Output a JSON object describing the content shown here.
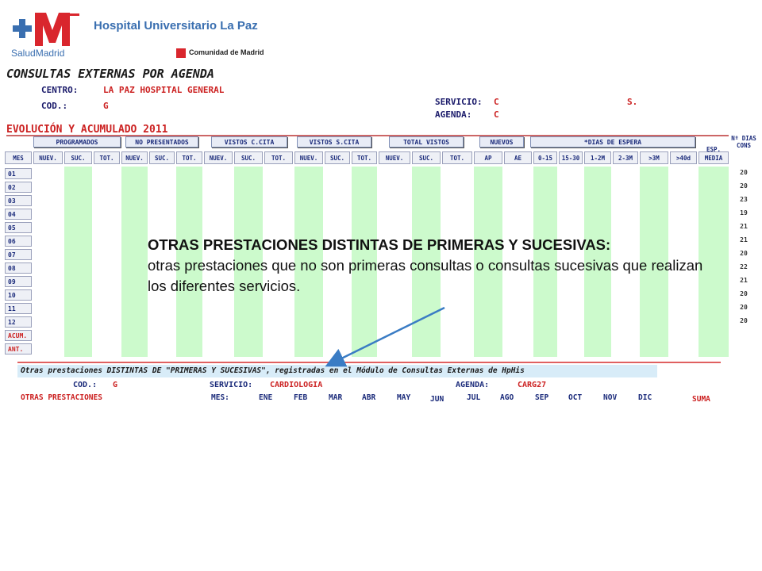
{
  "header": {
    "hospital_title": "Hospital Universitario La Paz",
    "logo_text": "SaludMadrid",
    "region_label": "Comunidad de Madrid"
  },
  "report": {
    "title": "CONSULTAS EXTERNAS POR AGENDA",
    "centro_label": "CENTRO:",
    "centro_value": "LA PAZ HOSPITAL GENERAL",
    "cod_label": "COD.:",
    "cod_value": "G",
    "servicio_label": "SERVICIO:",
    "servicio_value": "C",
    "servicio_tail": "S.",
    "agenda_label": "AGENDA:",
    "agenda_value": "C",
    "section_title": "EVOLUCIÓN Y ACUMULADO 2011"
  },
  "groups": [
    "PROGRAMADOS",
    "NO PRESENTADOS",
    "VISTOS C.CITA",
    "VISTOS S.CITA",
    "TOTAL VISTOS",
    "NUEVOS",
    "*DIAS DE ESPERA"
  ],
  "side_headers": {
    "esp_media": "ESP. MEDIA",
    "n_dias": "Nº DIAS CONS"
  },
  "columns": [
    "MES",
    "NUEV.",
    "SUC.",
    "TOT.",
    "NUEV.",
    "SUC.",
    "TOT.",
    "NUEV.",
    "SUC.",
    "TOT.",
    "NUEV.",
    "SUC.",
    "TOT.",
    "NUEV.",
    "SUC.",
    "TOT.",
    "AP",
    "AE",
    "0-15",
    "15-30",
    "1-2M",
    "2-3M",
    ">3M",
    ">40d",
    "MEDIA"
  ],
  "rows": [
    "01",
    "02",
    "03",
    "04",
    "05",
    "06",
    "07",
    "08",
    "09",
    "10",
    "11",
    "12",
    "ACUM.",
    "ANT."
  ],
  "n_dias_values": [
    "20",
    "20",
    "23",
    "19",
    "21",
    "21",
    "20",
    "22",
    "21",
    "20",
    "20",
    "20"
  ],
  "annotation": {
    "title": "OTRAS PRESTACIONES DISTINTAS DE PRIMERAS Y SUCESIVAS:",
    "body": "otras prestaciones que no son primeras consultas o consultas sucesivas que realizan los diferentes servicios."
  },
  "otras": {
    "bar_text": "Otras prestaciones DISTINTAS DE \"PRIMERAS Y SUCESIVAS\", registradas en el Módulo de Consultas Externas de HpHis",
    "cod_label": "COD.:",
    "cod_value": "G",
    "servicio_label": "SERVICIO:",
    "servicio_value": "CARDIOLOGIA",
    "agenda_label": "AGENDA:",
    "agenda_value": "CARG27",
    "row_label": "OTRAS PRESTACIONES",
    "mes_label": "MES:",
    "months": [
      "ENE",
      "FEB",
      "MAR",
      "ABR",
      "MAY",
      "JUN",
      "JUL",
      "AGO",
      "SEP",
      "OCT",
      "NOV",
      "DIC"
    ],
    "suma_label": "SUMA"
  },
  "colors": {
    "stripe": "#ccfacc",
    "accent_red": "#cc2222",
    "arrow": "#3a7cc4",
    "header_blue": "#3a6fb0"
  }
}
